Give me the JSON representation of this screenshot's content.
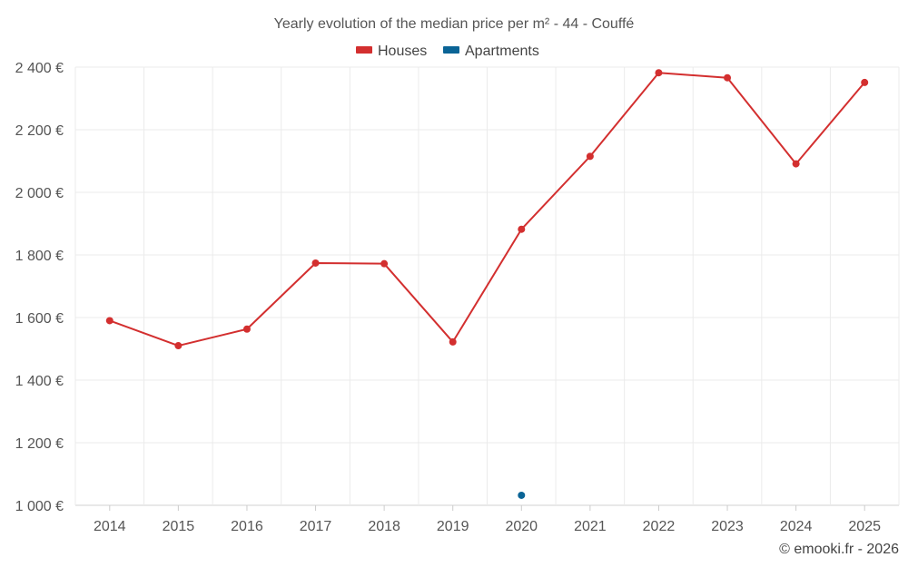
{
  "chart_data": {
    "type": "line",
    "title": "Yearly evolution of the median price per m² - 44 - Couffé",
    "x": [
      "2014",
      "2015",
      "2016",
      "2017",
      "2018",
      "2019",
      "2020",
      "2021",
      "2022",
      "2023",
      "2024",
      "2025"
    ],
    "y_ticks": [
      "1 000 €",
      "1 200 €",
      "1 400 €",
      "1 600 €",
      "1 800 €",
      "2 000 €",
      "2 200 €",
      "2 400 €"
    ],
    "y_tick_values": [
      1000,
      1200,
      1400,
      1600,
      1800,
      2000,
      2200,
      2400
    ],
    "ylim": [
      1000,
      2400
    ],
    "grid": true,
    "legend_position": "top-center",
    "series": [
      {
        "name": "Houses",
        "color": "#d32f2f",
        "values": [
          1590,
          1510,
          1563,
          1774,
          1772,
          1522,
          1882,
          2115,
          2382,
          2366,
          2091,
          2351
        ]
      },
      {
        "name": "Apartments",
        "color": "#0a6496",
        "values": [
          null,
          null,
          null,
          null,
          null,
          null,
          1032,
          null,
          null,
          null,
          null,
          null
        ]
      }
    ],
    "credit": "© emooki.fr - 2026"
  }
}
